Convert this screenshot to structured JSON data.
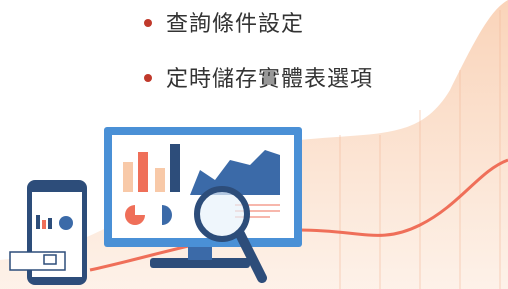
{
  "bullets": [
    "查詢條件設定",
    "定時儲存實體表選項"
  ]
}
